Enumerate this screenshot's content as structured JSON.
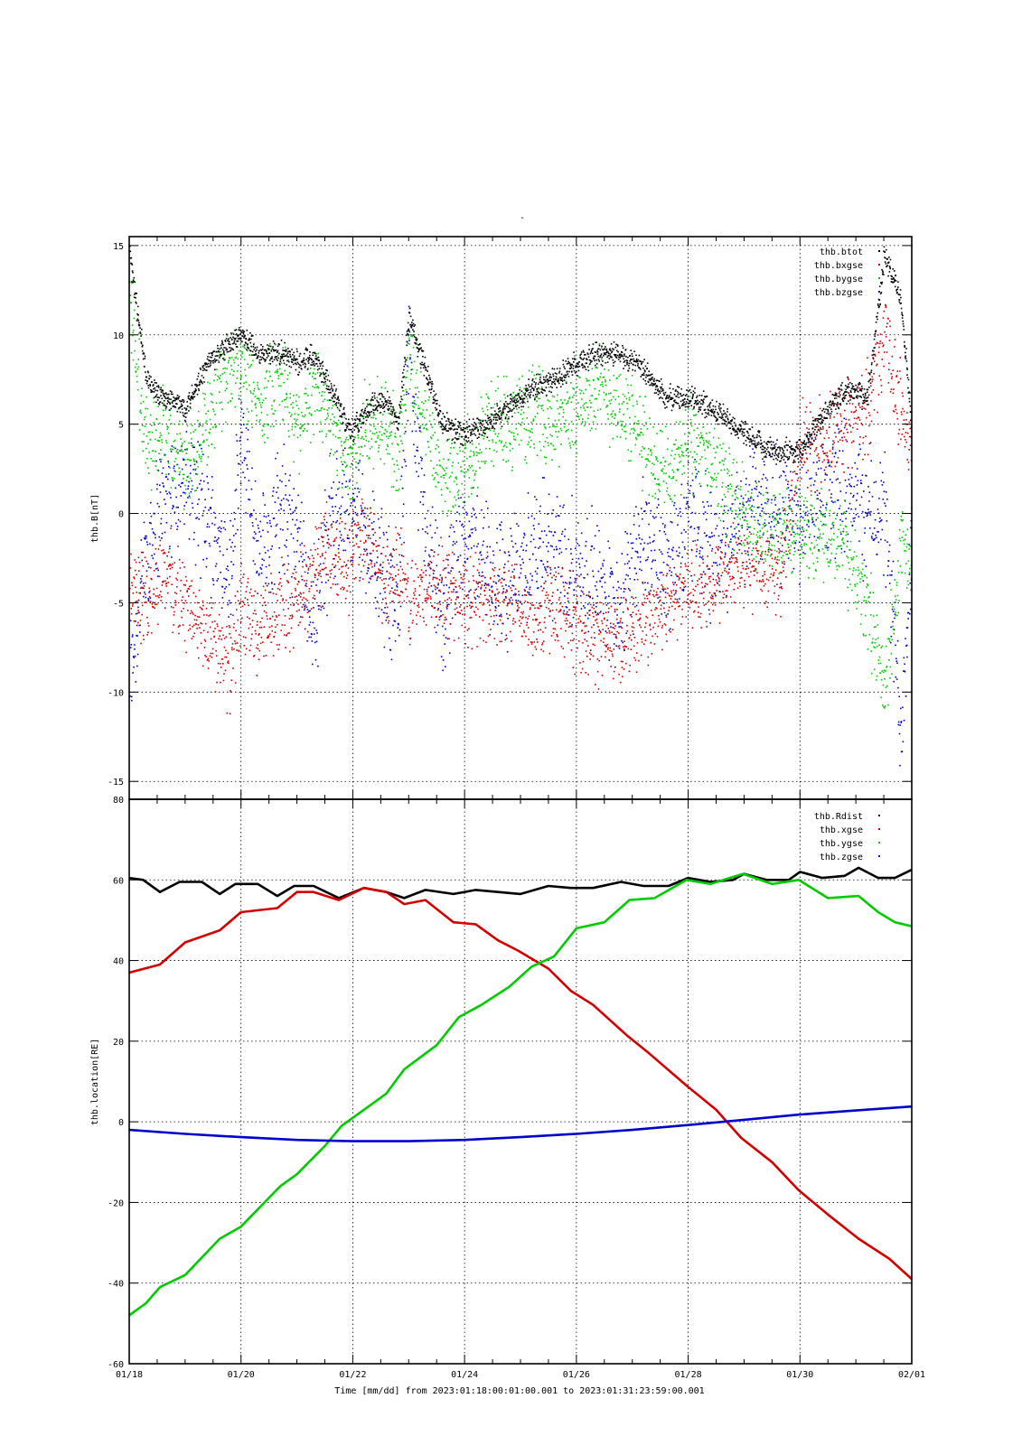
{
  "top_marker": "-",
  "x_axis": {
    "label": "Time [mm/dd]  from 2023:01:18:00:01:00.001  to  2023:01:31:23:59:00.001",
    "range_days": [
      0,
      14
    ],
    "ticks": [
      {
        "day": 0,
        "label": "01/18"
      },
      {
        "day": 2,
        "label": "01/20"
      },
      {
        "day": 4,
        "label": "01/22"
      },
      {
        "day": 6,
        "label": "01/24"
      },
      {
        "day": 8,
        "label": "01/26"
      },
      {
        "day": 10,
        "label": "01/28"
      },
      {
        "day": 12,
        "label": "01/30"
      },
      {
        "day": 14,
        "label": "02/01"
      }
    ]
  },
  "colors": {
    "black": "#000000",
    "red": "#d40000",
    "green": "#00cc00",
    "blue": "#0000cc"
  },
  "chart_data": [
    {
      "type": "scatter",
      "ylabel": "thb.B[nT]",
      "ylim": [
        -16,
        15.5
      ],
      "yticks": [
        15,
        10,
        5,
        0,
        -5,
        -10,
        -15
      ],
      "grid": true,
      "legend_position": "top-right",
      "legend": [
        "thb.btot",
        "thb.bxgse",
        "thb.bygse",
        "thb.bzgse"
      ],
      "series": [
        {
          "name": "thb.btot",
          "color": "#000000",
          "x": [
            0,
            0.3,
            0.6,
            1.0,
            1.4,
            1.8,
            2.0,
            2.3,
            2.7,
            3.0,
            3.3,
            3.6,
            3.9,
            4.0,
            4.3,
            4.6,
            4.8,
            5.0,
            5.3,
            5.6,
            6.0,
            6.4,
            6.8,
            7.2,
            7.6,
            8.0,
            8.4,
            8.8,
            9.2,
            9.6,
            10.0,
            10.4,
            10.8,
            11.2,
            11.6,
            12.0,
            12.4,
            12.8,
            13.2,
            13.5,
            13.8,
            14.0
          ],
          "y": [
            14.5,
            7.5,
            6.5,
            6.0,
            8.5,
            9.5,
            10.0,
            9.0,
            9.0,
            8.5,
            9.0,
            7.0,
            5.0,
            4.8,
            6.0,
            6.5,
            5.0,
            11.0,
            8.0,
            5.0,
            4.5,
            5.0,
            6.0,
            7.0,
            7.5,
            8.5,
            9.0,
            9.0,
            8.0,
            6.5,
            6.5,
            6.0,
            5.0,
            4.0,
            3.5,
            3.5,
            5.5,
            7.0,
            6.5,
            14.5,
            12.0,
            4.5
          ]
        },
        {
          "name": "thb.bxgse",
          "color": "#d40000",
          "x": [
            0,
            0.3,
            0.6,
            1.0,
            1.4,
            1.8,
            2.0,
            2.3,
            2.7,
            3.0,
            3.3,
            3.6,
            3.9,
            4.0,
            4.3,
            4.6,
            4.8,
            5.0,
            5.3,
            5.6,
            6.0,
            6.4,
            6.8,
            7.2,
            7.6,
            8.0,
            8.4,
            8.8,
            9.2,
            9.6,
            10.0,
            10.4,
            10.8,
            11.2,
            11.6,
            12.0,
            12.4,
            12.8,
            13.2,
            13.5,
            13.8,
            14.0
          ],
          "y": [
            -4.0,
            -5.0,
            -3.0,
            -5.0,
            -7.0,
            -8.5,
            -5.0,
            -7.0,
            -5.0,
            -5.0,
            -3.0,
            -2.0,
            -3.0,
            -1.0,
            -2.0,
            -4.0,
            -3.0,
            -5.0,
            -4.0,
            -4.0,
            -5.0,
            -4.5,
            -5.0,
            -6.0,
            -5.0,
            -6.0,
            -7.0,
            -7.0,
            -6.0,
            -5.0,
            -4.0,
            -4.0,
            -3.0,
            -3.0,
            -3.5,
            3.5,
            4.0,
            5.0,
            6.0,
            10.0,
            6.0,
            3.0
          ]
        },
        {
          "name": "thb.bygse",
          "color": "#00cc00",
          "x": [
            0,
            0.3,
            0.6,
            1.0,
            1.4,
            1.8,
            2.0,
            2.3,
            2.7,
            3.0,
            3.3,
            3.6,
            3.9,
            4.0,
            4.3,
            4.6,
            4.8,
            5.0,
            5.3,
            5.6,
            6.0,
            6.4,
            6.8,
            7.2,
            7.6,
            8.0,
            8.4,
            8.8,
            9.2,
            9.6,
            10.0,
            10.4,
            10.8,
            11.2,
            11.6,
            12.0,
            12.4,
            12.8,
            13.2,
            13.5,
            13.8,
            14.0
          ],
          "y": [
            12.0,
            4.0,
            5.0,
            3.0,
            5.0,
            8.0,
            8.5,
            6.0,
            8.0,
            5.0,
            7.0,
            5.0,
            3.0,
            3.5,
            5.0,
            5.0,
            3.0,
            9.0,
            5.0,
            2.0,
            3.0,
            5.0,
            5.0,
            6.0,
            5.0,
            6.0,
            7.0,
            6.0,
            4.0,
            2.0,
            4.0,
            3.0,
            1.0,
            -1.0,
            -1.0,
            -1.0,
            -1.0,
            -2.0,
            -5.0,
            -10.0,
            -2.0,
            -3.0
          ]
        },
        {
          "name": "thb.bzgse",
          "color": "#0000cc",
          "x": [
            0,
            0.3,
            0.6,
            1.0,
            1.4,
            1.8,
            2.0,
            2.3,
            2.7,
            3.0,
            3.3,
            3.6,
            3.9,
            4.0,
            4.3,
            4.6,
            4.8,
            5.0,
            5.3,
            5.6,
            6.0,
            6.4,
            6.8,
            7.2,
            7.6,
            8.0,
            8.4,
            8.8,
            9.2,
            9.6,
            10.0,
            10.4,
            10.8,
            11.2,
            11.6,
            12.0,
            12.4,
            12.8,
            13.2,
            13.5,
            13.8,
            14.0
          ],
          "y": [
            -9.0,
            -2.0,
            1.0,
            2.0,
            0.0,
            -4.0,
            5.0,
            -3.0,
            1.0,
            -2.0,
            -6.0,
            0.0,
            0.0,
            1.0,
            -2.0,
            -4.0,
            -5.0,
            9.0,
            -2.0,
            -6.0,
            -1.0,
            -3.0,
            -4.0,
            -2.0,
            -2.0,
            -3.0,
            -4.0,
            -5.0,
            -1.0,
            -3.0,
            0.0,
            -2.0,
            -1.0,
            1.0,
            0.0,
            0.0,
            1.0,
            2.0,
            0.0,
            0.0,
            -12.0,
            0.0
          ]
        }
      ]
    },
    {
      "type": "line",
      "ylabel": "thb.location[RE]",
      "ylim": [
        -60,
        80
      ],
      "yticks": [
        80,
        60,
        40,
        20,
        0,
        -20,
        -40,
        -60
      ],
      "grid": true,
      "legend_position": "top-right",
      "legend": [
        "thb.Rdist",
        "thb.xgse",
        "thb.ygse",
        "thb.zgse"
      ],
      "series": [
        {
          "name": "thb.Rdist",
          "color": "#000000",
          "x": [
            0,
            0.25,
            0.55,
            0.9,
            1.3,
            1.62,
            1.9,
            2.3,
            2.65,
            2.95,
            3.3,
            3.75,
            4.2,
            4.6,
            4.92,
            5.3,
            5.8,
            6.2,
            6.6,
            7.0,
            7.5,
            7.9,
            8.3,
            8.8,
            9.2,
            9.65,
            10.0,
            10.4,
            10.8,
            11.0,
            11.4,
            11.8,
            12.0,
            12.4,
            12.8,
            13.05,
            13.4,
            13.7,
            14.0
          ],
          "y": [
            60.5,
            60.0,
            57.0,
            59.5,
            59.5,
            56.5,
            59.0,
            59.0,
            56.0,
            58.5,
            58.5,
            55.5,
            58.0,
            57.0,
            55.5,
            57.5,
            56.5,
            57.5,
            57.0,
            56.5,
            58.5,
            58.0,
            58.0,
            59.5,
            58.5,
            58.5,
            60.5,
            59.5,
            60.0,
            61.5,
            60.0,
            60.0,
            62.0,
            60.5,
            61.0,
            63.0,
            60.5,
            60.5,
            62.5
          ]
        },
        {
          "name": "thb.xgse",
          "color": "#d40000",
          "x": [
            0,
            0.55,
            1.0,
            1.62,
            2.0,
            2.65,
            3.0,
            3.3,
            3.75,
            4.2,
            4.6,
            4.92,
            5.3,
            5.8,
            6.2,
            6.6,
            6.95,
            7.5,
            7.9,
            8.3,
            8.9,
            9.3,
            9.97,
            10.5,
            10.95,
            11.5,
            11.98,
            12.5,
            13.05,
            13.6,
            14.0
          ],
          "y": [
            37.0,
            39.0,
            44.5,
            47.5,
            52.0,
            53.0,
            57.0,
            57.0,
            55.0,
            58.0,
            57.0,
            54.0,
            55.0,
            49.5,
            49.0,
            45.0,
            42.5,
            38.0,
            32.5,
            29.0,
            21.5,
            17.0,
            9.0,
            3.0,
            -4.0,
            -10.0,
            -17.0,
            -23.0,
            -29.0,
            -34.0,
            -39.0
          ]
        },
        {
          "name": "thb.ygse",
          "color": "#00cc00",
          "x": [
            0,
            0.3,
            0.55,
            1.0,
            1.62,
            2.0,
            2.7,
            3.0,
            3.5,
            3.8,
            4.2,
            4.6,
            4.92,
            5.5,
            5.9,
            6.3,
            6.8,
            7.2,
            7.6,
            8.0,
            8.5,
            8.95,
            9.4,
            9.97,
            10.4,
            10.98,
            11.5,
            11.98,
            12.5,
            13.05,
            13.4,
            13.7,
            14.0
          ],
          "y": [
            -48.0,
            -45.0,
            -41.0,
            -38.0,
            -29.0,
            -26.0,
            -16.0,
            -13.0,
            -6.0,
            -1.0,
            3.0,
            7.0,
            13.0,
            19.0,
            26.0,
            29.0,
            33.5,
            38.5,
            41.0,
            48.0,
            49.5,
            55.0,
            55.5,
            60.0,
            59.0,
            61.5,
            59.0,
            60.0,
            55.5,
            56.0,
            52.0,
            49.5,
            48.5
          ]
        },
        {
          "name": "thb.zgse",
          "color": "#0000cc",
          "x": [
            0,
            1.0,
            2.0,
            3.0,
            4.0,
            5.0,
            6.0,
            7.0,
            8.0,
            9.0,
            10.0,
            11.0,
            12.0,
            13.0,
            14.0
          ],
          "y": [
            -2.0,
            -3.0,
            -3.8,
            -4.5,
            -4.8,
            -4.8,
            -4.5,
            -3.8,
            -3.0,
            -2.0,
            -0.8,
            0.5,
            1.8,
            2.8,
            3.8
          ]
        }
      ]
    }
  ]
}
